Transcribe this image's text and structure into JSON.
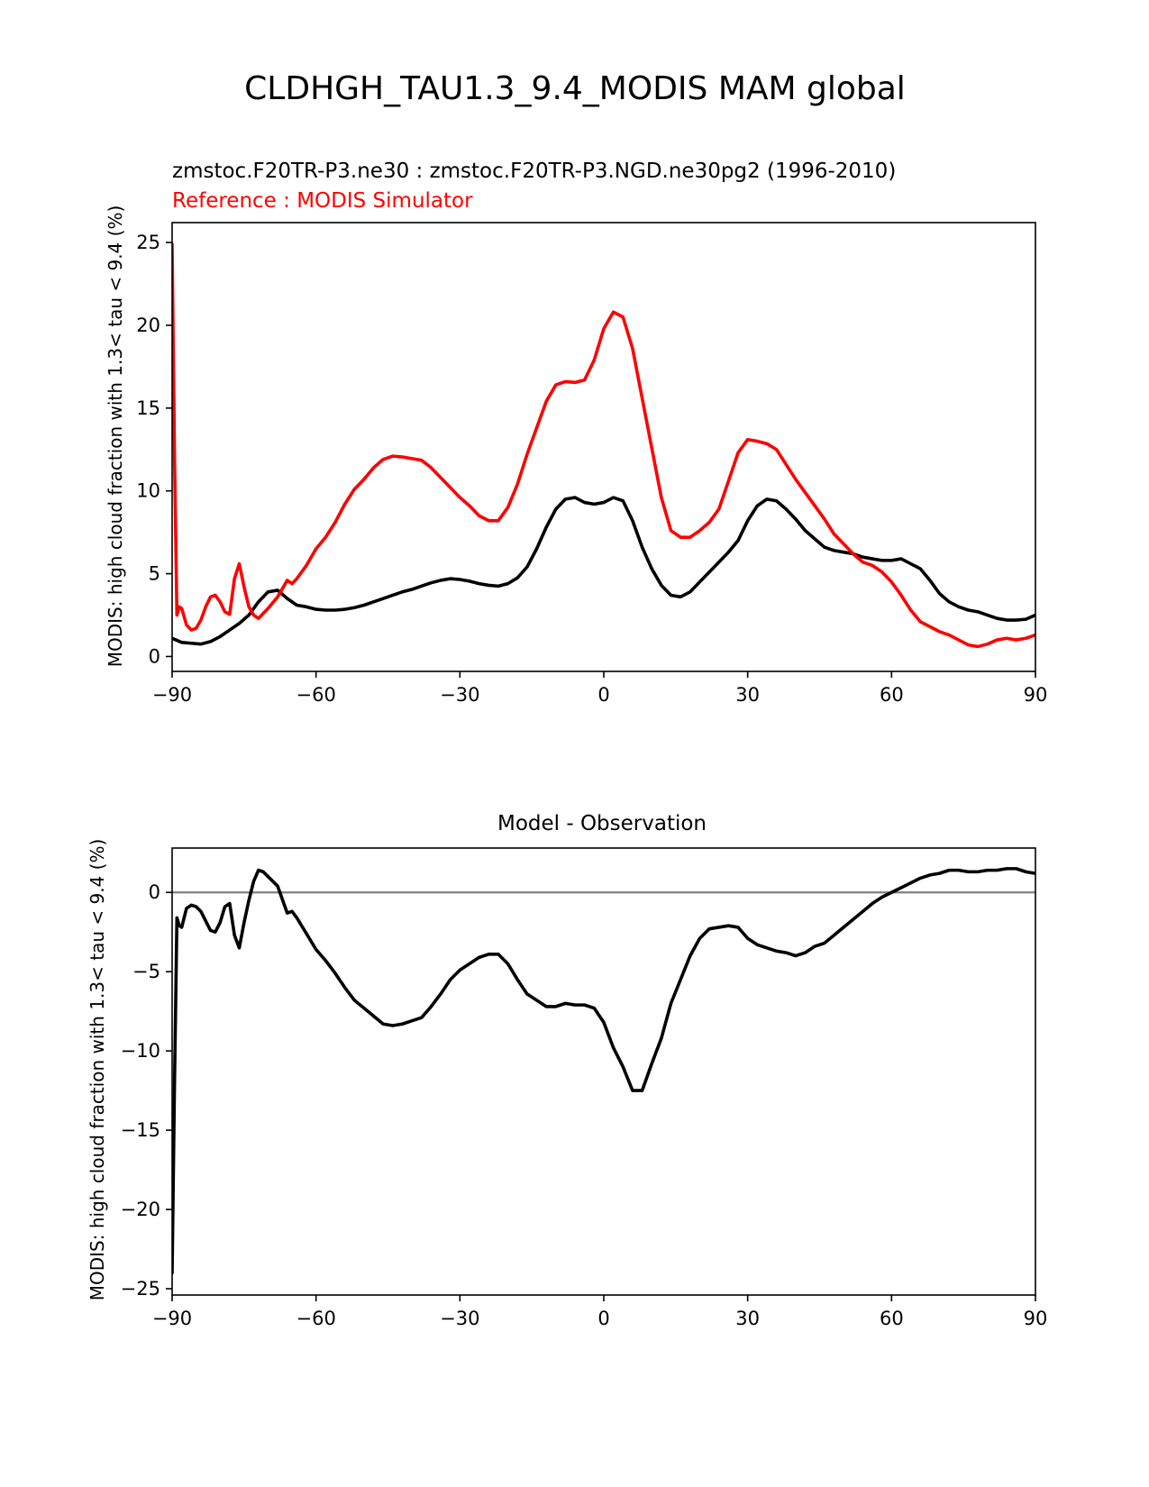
{
  "figure": {
    "title": "CLDHGH_TAU1.3_9.4_MODIS MAM global"
  },
  "colors": {
    "test": "#000000",
    "reference": "#ff0000",
    "zero_line": "#808080"
  },
  "chart_data": [
    {
      "type": "line",
      "subtitle_test": "zmstoc.F20TR-P3.ne30 : zmstoc.F20TR-P3.NGD.ne30pg2 (1996-2010)",
      "subtitle_reference": "Reference : MODIS Simulator",
      "title": "",
      "xlabel": "",
      "ylabel": "MODIS: high cloud fraction with 1.3< tau < 9.4 (%)",
      "xlim": [
        -90,
        90
      ],
      "ylim": [
        -0.9,
        26.2
      ],
      "xticks": [
        -90,
        -60,
        -30,
        0,
        30,
        60,
        90
      ],
      "xtick_labels": [
        "−90",
        "−60",
        "−30",
        "0",
        "30",
        "60",
        "90"
      ],
      "yticks": [
        0,
        5,
        10,
        15,
        20,
        25
      ],
      "ytick_labels": [
        "0",
        "5",
        "10",
        "15",
        "20",
        "25"
      ],
      "grid": false,
      "series": [
        {
          "role": "test",
          "color": "#000000",
          "x": [
            -90,
            -88,
            -86,
            -84,
            -82,
            -80,
            -78,
            -76,
            -74,
            -72,
            -70,
            -68,
            -66,
            -64,
            -62,
            -60,
            -58,
            -56,
            -54,
            -52,
            -50,
            -48,
            -46,
            -44,
            -42,
            -40,
            -38,
            -36,
            -34,
            -32,
            -30,
            -28,
            -26,
            -24,
            -22,
            -20,
            -18,
            -16,
            -14,
            -12,
            -10,
            -8,
            -6,
            -4,
            -2,
            0,
            2,
            4,
            6,
            8,
            10,
            12,
            14,
            16,
            18,
            20,
            22,
            24,
            26,
            28,
            30,
            32,
            34,
            36,
            38,
            40,
            42,
            44,
            46,
            48,
            50,
            52,
            54,
            56,
            58,
            60,
            62,
            64,
            66,
            68,
            70,
            72,
            74,
            76,
            78,
            80,
            82,
            84,
            86,
            88,
            90
          ],
          "y": [
            1.1,
            0.85,
            0.8,
            0.75,
            0.9,
            1.2,
            1.6,
            2.0,
            2.5,
            3.3,
            3.9,
            4.0,
            3.5,
            3.1,
            3.0,
            2.85,
            2.8,
            2.8,
            2.85,
            2.95,
            3.1,
            3.3,
            3.5,
            3.7,
            3.9,
            4.05,
            4.25,
            4.45,
            4.6,
            4.7,
            4.65,
            4.55,
            4.4,
            4.3,
            4.25,
            4.4,
            4.75,
            5.4,
            6.5,
            7.8,
            8.9,
            9.5,
            9.6,
            9.3,
            9.2,
            9.3,
            9.6,
            9.4,
            8.2,
            6.6,
            5.3,
            4.3,
            3.7,
            3.6,
            3.9,
            4.5,
            5.1,
            5.7,
            6.3,
            7.0,
            8.2,
            9.1,
            9.5,
            9.4,
            8.9,
            8.3,
            7.6,
            7.1,
            6.6,
            6.4,
            6.3,
            6.2,
            6.0,
            5.9,
            5.8,
            5.8,
            5.9,
            5.6,
            5.3,
            4.6,
            3.8,
            3.3,
            3.0,
            2.8,
            2.7,
            2.5,
            2.3,
            2.2,
            2.2,
            2.25,
            2.5
          ]
        },
        {
          "role": "reference",
          "color": "#ff0000",
          "x": [
            -90,
            -89.5,
            -89,
            -88.5,
            -88,
            -87,
            -86,
            -85,
            -84,
            -83,
            -82,
            -81,
            -80,
            -79,
            -78,
            -77,
            -76,
            -75,
            -74,
            -73,
            -72,
            -71,
            -70,
            -68,
            -66,
            -65,
            -64,
            -62,
            -60,
            -58,
            -56,
            -54,
            -52,
            -50,
            -48,
            -46,
            -44,
            -42,
            -40,
            -38,
            -36,
            -34,
            -32,
            -30,
            -28,
            -26,
            -24,
            -22,
            -20,
            -18,
            -16,
            -14,
            -12,
            -10,
            -8,
            -6,
            -4,
            -2,
            0,
            2,
            4,
            6,
            8,
            10,
            12,
            14,
            16,
            18,
            20,
            22,
            24,
            26,
            28,
            30,
            32,
            34,
            36,
            38,
            40,
            42,
            44,
            46,
            48,
            50,
            52,
            54,
            56,
            58,
            60,
            62,
            64,
            66,
            68,
            70,
            72,
            74,
            76,
            78,
            80,
            82,
            84,
            86,
            88,
            90
          ],
          "y": [
            24.9,
            12.0,
            2.5,
            3.0,
            2.9,
            1.9,
            1.6,
            1.7,
            2.2,
            3.0,
            3.6,
            3.7,
            3.3,
            2.7,
            2.55,
            4.7,
            5.6,
            4.2,
            3.0,
            2.5,
            2.3,
            2.6,
            2.9,
            3.6,
            4.6,
            4.4,
            4.7,
            5.5,
            6.5,
            7.2,
            8.1,
            9.2,
            10.1,
            10.7,
            11.4,
            11.9,
            12.1,
            12.05,
            11.95,
            11.85,
            11.4,
            10.8,
            10.2,
            9.6,
            9.1,
            8.5,
            8.2,
            8.2,
            9.0,
            10.4,
            12.2,
            13.8,
            15.4,
            16.4,
            16.6,
            16.55,
            16.7,
            17.9,
            19.8,
            20.8,
            20.5,
            18.6,
            15.6,
            12.6,
            9.6,
            7.6,
            7.2,
            7.2,
            7.6,
            8.1,
            8.9,
            10.6,
            12.3,
            13.1,
            13.0,
            12.85,
            12.5,
            11.6,
            10.7,
            9.9,
            9.1,
            8.3,
            7.4,
            6.8,
            6.2,
            5.7,
            5.5,
            5.1,
            4.5,
            3.7,
            2.8,
            2.1,
            1.8,
            1.5,
            1.3,
            1.0,
            0.7,
            0.6,
            0.75,
            1.0,
            1.1,
            1.0,
            1.1,
            1.3
          ]
        }
      ]
    },
    {
      "type": "line",
      "title": "Model - Observation",
      "xlabel": "",
      "ylabel": "MODIS: high cloud fraction with 1.3< tau < 9.4 (%)",
      "xlim": [
        -90,
        90
      ],
      "ylim": [
        -25.4,
        2.8
      ],
      "xticks": [
        -90,
        -60,
        -30,
        0,
        30,
        60,
        90
      ],
      "xtick_labels": [
        "−90",
        "−60",
        "−30",
        "0",
        "30",
        "60",
        "90"
      ],
      "yticks": [
        0,
        -5,
        -10,
        -15,
        -20,
        -25
      ],
      "ytick_labels": [
        "0",
        "−5",
        "−10",
        "−15",
        "−20",
        "−25"
      ],
      "zero_line": 0,
      "grid": false,
      "series": [
        {
          "role": "difference",
          "color": "#000000",
          "x": [
            -90,
            -89.5,
            -89,
            -88.5,
            -88,
            -87,
            -86,
            -85,
            -84,
            -83,
            -82,
            -81,
            -80,
            -79,
            -78,
            -77,
            -76,
            -75,
            -74,
            -73,
            -72,
            -71,
            -70,
            -68,
            -66,
            -65,
            -64,
            -62,
            -60,
            -58,
            -56,
            -54,
            -52,
            -50,
            -48,
            -46,
            -44,
            -42,
            -40,
            -38,
            -36,
            -34,
            -32,
            -30,
            -28,
            -26,
            -24,
            -22,
            -20,
            -18,
            -16,
            -14,
            -12,
            -10,
            -8,
            -6,
            -4,
            -2,
            0,
            2,
            4,
            6,
            8,
            10,
            12,
            14,
            16,
            18,
            20,
            22,
            24,
            26,
            28,
            30,
            32,
            34,
            36,
            38,
            40,
            42,
            44,
            46,
            48,
            50,
            52,
            54,
            56,
            58,
            60,
            62,
            64,
            66,
            68,
            70,
            72,
            74,
            76,
            78,
            80,
            82,
            84,
            86,
            88,
            90
          ],
          "y": [
            -24.0,
            -12.0,
            -1.6,
            -2.1,
            -2.2,
            -1.0,
            -0.8,
            -0.9,
            -1.2,
            -1.8,
            -2.4,
            -2.5,
            -1.9,
            -0.9,
            -0.7,
            -2.7,
            -3.5,
            -1.9,
            -0.5,
            0.7,
            1.4,
            1.3,
            1.0,
            0.4,
            -1.3,
            -1.2,
            -1.6,
            -2.6,
            -3.6,
            -4.3,
            -5.1,
            -6.0,
            -6.8,
            -7.3,
            -7.8,
            -8.3,
            -8.4,
            -8.3,
            -8.1,
            -7.9,
            -7.2,
            -6.4,
            -5.5,
            -4.9,
            -4.5,
            -4.1,
            -3.9,
            -3.9,
            -4.5,
            -5.5,
            -6.4,
            -6.8,
            -7.2,
            -7.2,
            -7.0,
            -7.1,
            -7.1,
            -7.3,
            -8.2,
            -9.8,
            -11.0,
            -12.5,
            -12.5,
            -10.8,
            -9.2,
            -7.0,
            -5.5,
            -4.0,
            -2.9,
            -2.3,
            -2.2,
            -2.1,
            -2.2,
            -2.9,
            -3.3,
            -3.5,
            -3.7,
            -3.8,
            -4.0,
            -3.8,
            -3.4,
            -3.2,
            -2.7,
            -2.2,
            -1.7,
            -1.2,
            -0.7,
            -0.3,
            0.0,
            0.3,
            0.6,
            0.9,
            1.1,
            1.2,
            1.4,
            1.4,
            1.3,
            1.3,
            1.4,
            1.4,
            1.5,
            1.5,
            1.3,
            1.2
          ]
        }
      ]
    }
  ]
}
